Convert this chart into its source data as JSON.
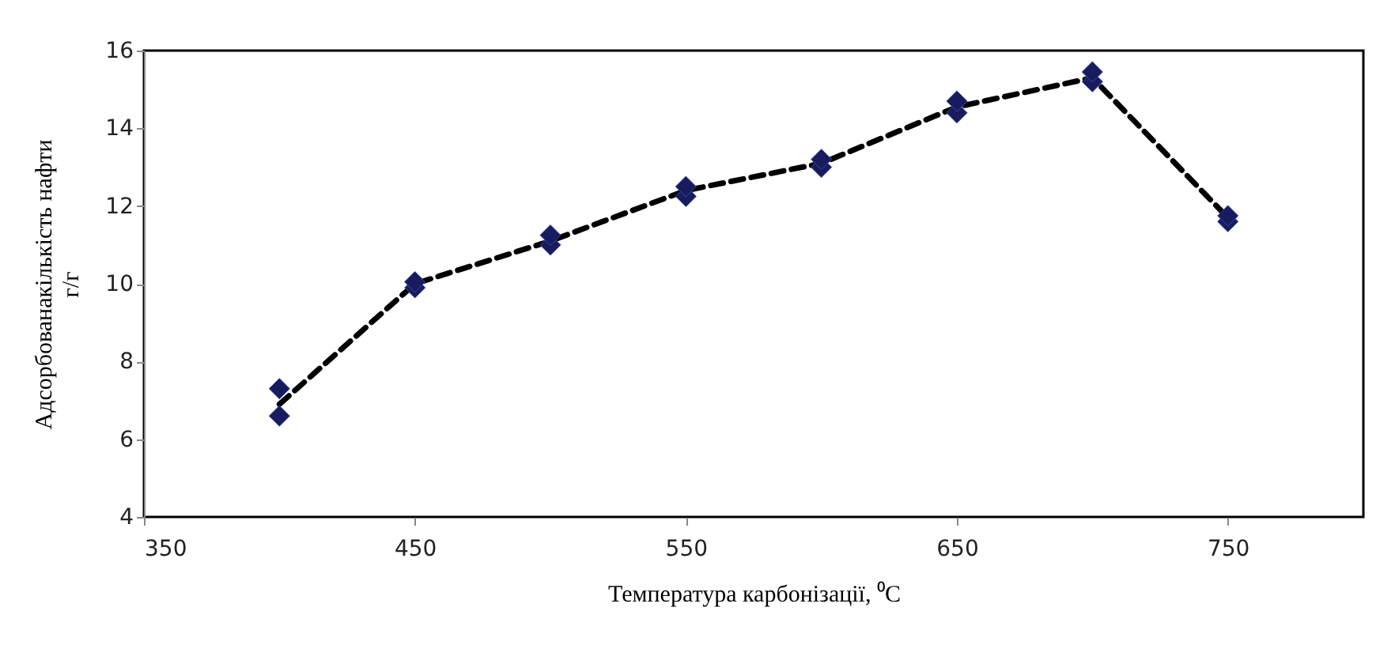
{
  "chart_data": {
    "type": "scatter",
    "xlabel": "Температура карбонізації, ⁰C",
    "ylabel": "Адсорбованакількість нафти\nг/г",
    "xlim": [
      350,
      800
    ],
    "xticks": [
      350,
      450,
      550,
      650,
      750
    ],
    "ylim": [
      4,
      16
    ],
    "yticks": [
      4,
      6,
      8,
      10,
      12,
      14,
      16
    ],
    "grid": false,
    "series": [
      {
        "type": "line",
        "color": "#000000",
        "line_style": "dashed",
        "marker": "none",
        "x": [
          400,
          450,
          500,
          550,
          600,
          650,
          700,
          750
        ],
        "values": [
          6.9,
          10.0,
          11.1,
          12.4,
          13.1,
          14.55,
          15.3,
          11.7
        ]
      },
      {
        "color": "#1a1a5e",
        "marker": "diamond",
        "x": [
          400,
          400,
          450,
          450,
          500,
          500,
          550,
          550,
          600,
          600,
          650,
          650,
          700,
          700,
          750,
          750
        ],
        "values": [
          6.6,
          7.3,
          9.9,
          10.05,
          11.0,
          11.25,
          12.25,
          12.5,
          13.0,
          13.2,
          14.4,
          14.7,
          15.2,
          15.45,
          11.6,
          11.75
        ]
      }
    ]
  }
}
